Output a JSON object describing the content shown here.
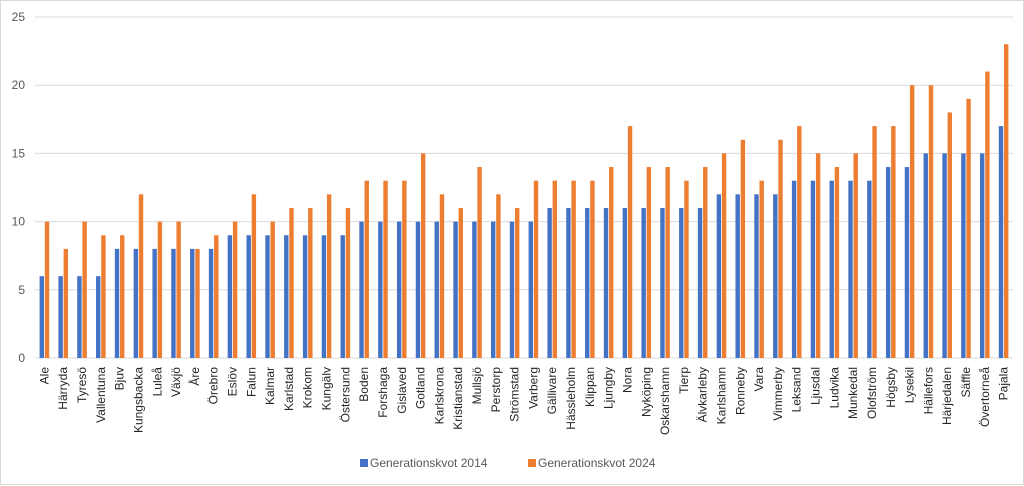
{
  "chart_data": {
    "type": "bar",
    "title": "",
    "xlabel": "",
    "ylabel": "",
    "ylim": [
      0,
      25
    ],
    "yticks": [
      0,
      5,
      10,
      15,
      20,
      25
    ],
    "grid": true,
    "legend_position": "bottom",
    "categories": [
      "Ale",
      "Härryda",
      "Tyresö",
      "Vallentuna",
      "Bjuv",
      "Kungsbacka",
      "Luleå",
      "Växjö",
      "Åre",
      "Örebro",
      "Eslöv",
      "Falun",
      "Kalmar",
      "Karlstad",
      "Krokom",
      "Kungälv",
      "Östersund",
      "Boden",
      "Forshaga",
      "Gislaved",
      "Gotland",
      "Karlskrona",
      "Kristianstad",
      "Mullsjö",
      "Perstorp",
      "Strömstad",
      "Varberg",
      "Gällivare",
      "Hässleholm",
      "Klippan",
      "Ljungby",
      "Nora",
      "Nyköping",
      "Oskarshamn",
      "Tierp",
      "Älvkarleby",
      "Karlshamn",
      "Ronneby",
      "Vara",
      "Vimmerby",
      "Leksand",
      "Ljusdal",
      "Ludvika",
      "Munkedal",
      "Olofström",
      "Högsby",
      "Lysekil",
      "Hällefors",
      "Härjedalen",
      "Säffle",
      "Övertorneå",
      "Pajala"
    ],
    "series": [
      {
        "name": "Generationskvot 2014",
        "color": "#4472c4",
        "values": [
          6,
          6,
          6,
          6,
          8,
          8,
          8,
          8,
          8,
          8,
          9,
          9,
          9,
          9,
          9,
          9,
          9,
          10,
          10,
          10,
          10,
          10,
          10,
          10,
          10,
          10,
          10,
          11,
          11,
          11,
          11,
          11,
          11,
          11,
          11,
          11,
          12,
          12,
          12,
          12,
          13,
          13,
          13,
          13,
          13,
          14,
          14,
          15,
          15,
          15,
          15,
          17
        ]
      },
      {
        "name": "Generationskvot 2024",
        "color": "#ed7d31",
        "values": [
          10,
          8,
          10,
          9,
          9,
          12,
          10,
          10,
          8,
          9,
          10,
          12,
          10,
          11,
          11,
          12,
          11,
          13,
          13,
          13,
          15,
          12,
          11,
          14,
          12,
          11,
          13,
          13,
          13,
          13,
          14,
          17,
          14,
          14,
          13,
          14,
          15,
          16,
          13,
          16,
          17,
          15,
          14,
          15,
          17,
          17,
          20,
          20,
          18,
          19,
          21,
          23
        ]
      }
    ]
  }
}
